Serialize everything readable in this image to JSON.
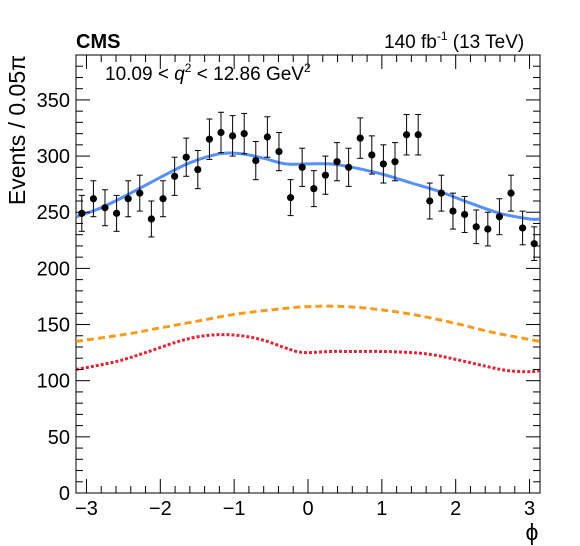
{
  "header": {
    "experiment": "CMS",
    "lumi_value": "140 fb",
    "lumi_exponent": "-1",
    "energy": " (13 TeV)"
  },
  "annotation": {
    "low": "10.09 < ",
    "var": "q",
    "power": "2",
    "high": " < 12.86 GeV",
    "unit_power": "2"
  },
  "colors": {
    "data_points": "#000000",
    "total_fit": "#5790fc",
    "dashed_component": "#f89c20",
    "dotted_component": "#e42536"
  },
  "chart_data": {
    "type": "scatter",
    "xlabel": "ϕ",
    "ylabel": "Events / 0.05π",
    "xlim": [
      -3.14159,
      3.14159
    ],
    "ylim": [
      0,
      390
    ],
    "x_ticks": [
      -3,
      -2,
      -1,
      0,
      1,
      2,
      3
    ],
    "y_ticks": [
      0,
      50,
      100,
      150,
      200,
      250,
      300,
      350
    ],
    "grid": false,
    "series": [
      {
        "kind": "points_with_errors",
        "x": [
          -3.063,
          -2.906,
          -2.749,
          -2.592,
          -2.435,
          -2.278,
          -2.121,
          -1.963,
          -1.806,
          -1.649,
          -1.492,
          -1.335,
          -1.178,
          -1.021,
          -0.864,
          -0.707,
          -0.55,
          -0.393,
          -0.236,
          -0.079,
          0.079,
          0.236,
          0.393,
          0.55,
          0.707,
          0.864,
          1.021,
          1.178,
          1.335,
          1.492,
          1.649,
          1.806,
          1.963,
          2.121,
          2.278,
          2.435,
          2.592,
          2.749,
          2.906,
          3.063
        ],
        "y": [
          249,
          262,
          254,
          249,
          262,
          267,
          244,
          262,
          282,
          299,
          288,
          315,
          321,
          318,
          320,
          296,
          317,
          304,
          263,
          290,
          271,
          283,
          295,
          290,
          316,
          301,
          293,
          295,
          319,
          319,
          260,
          267,
          251,
          248,
          237,
          235,
          246,
          267,
          236,
          222
        ],
        "yerr": [
          16,
          16,
          16,
          16,
          16,
          16,
          16,
          16,
          17,
          17,
          17,
          18,
          18,
          18,
          18,
          17,
          18,
          17,
          16,
          17,
          16,
          17,
          17,
          17,
          18,
          17,
          17,
          17,
          18,
          18,
          16,
          16,
          16,
          16,
          15,
          15,
          16,
          16,
          15,
          15
        ]
      },
      {
        "kind": "line",
        "style": "solid",
        "x": [
          -3.14,
          -2.8,
          -2.4,
          -2.0,
          -1.6,
          -1.2,
          -0.9,
          -0.6,
          -0.3,
          0.0,
          0.3,
          0.6,
          1.0,
          1.4,
          1.8,
          2.2,
          2.6,
          3.0,
          3.14
        ],
        "y": [
          246,
          254,
          267,
          281,
          294,
          302,
          302,
          298,
          293,
          293,
          293,
          290,
          284,
          276,
          268,
          258,
          249,
          244,
          244
        ]
      },
      {
        "kind": "line",
        "style": "dashed",
        "x": [
          -3.14,
          -2.5,
          -2.0,
          -1.5,
          -1.0,
          -0.5,
          0.0,
          0.5,
          1.0,
          1.5,
          2.0,
          2.5,
          3.14
        ],
        "y": [
          135,
          141,
          147,
          153,
          159,
          163,
          166,
          166,
          163,
          158,
          151,
          143,
          135
        ]
      },
      {
        "kind": "line",
        "style": "dotted",
        "x": [
          -3.14,
          -2.6,
          -2.2,
          -1.8,
          -1.5,
          -1.2,
          -0.9,
          -0.6,
          -0.3,
          -0.15,
          0.0,
          0.3,
          0.6,
          1.0,
          1.4,
          1.7,
          2.0,
          2.4,
          2.7,
          3.0,
          3.14
        ],
        "y": [
          110,
          117,
          125,
          134,
          139,
          141,
          140,
          136,
          129,
          126,
          125,
          126,
          126,
          126,
          125,
          123,
          119,
          113,
          109,
          108,
          109
        ]
      }
    ]
  }
}
